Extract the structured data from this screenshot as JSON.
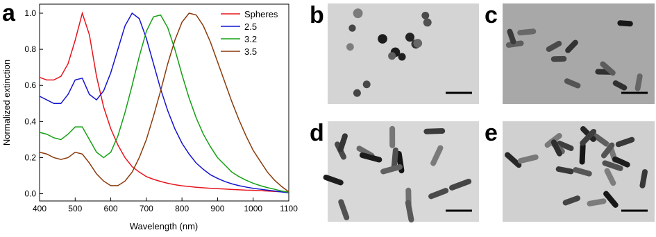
{
  "chart_data": {
    "type": "line",
    "label": "a",
    "xlabel": "Wavelength (nm)",
    "ylabel": "Normalized extinction",
    "x": [
      400,
      420,
      440,
      460,
      480,
      500,
      520,
      540,
      560,
      580,
      600,
      620,
      640,
      660,
      680,
      700,
      720,
      740,
      760,
      780,
      800,
      820,
      840,
      860,
      880,
      900,
      920,
      940,
      960,
      980,
      1000,
      1020,
      1040,
      1060,
      1080,
      1100
    ],
    "series": [
      {
        "name": "Spheres",
        "color": "#e8141c",
        "values": [
          0.645,
          0.63,
          0.63,
          0.65,
          0.72,
          0.85,
          1.0,
          0.88,
          0.65,
          0.48,
          0.36,
          0.27,
          0.2,
          0.15,
          0.12,
          0.095,
          0.08,
          0.068,
          0.058,
          0.05,
          0.044,
          0.04,
          0.036,
          0.033,
          0.03,
          0.028,
          0.026,
          0.024,
          0.022,
          0.02,
          0.019,
          0.017,
          0.015,
          0.013,
          0.011,
          0.01
        ]
      },
      {
        "name": "2.5",
        "color": "#1414d0",
        "values": [
          0.54,
          0.52,
          0.5,
          0.5,
          0.55,
          0.63,
          0.64,
          0.55,
          0.52,
          0.57,
          0.67,
          0.8,
          0.93,
          1.0,
          0.97,
          0.86,
          0.72,
          0.58,
          0.46,
          0.36,
          0.28,
          0.22,
          0.17,
          0.135,
          0.105,
          0.085,
          0.068,
          0.055,
          0.045,
          0.037,
          0.03,
          0.025,
          0.02,
          0.015,
          0.01,
          0.005
        ]
      },
      {
        "name": "3.2",
        "color": "#14a014",
        "values": [
          0.34,
          0.33,
          0.31,
          0.3,
          0.33,
          0.37,
          0.37,
          0.3,
          0.23,
          0.2,
          0.23,
          0.32,
          0.45,
          0.6,
          0.76,
          0.9,
          0.98,
          0.99,
          0.92,
          0.8,
          0.66,
          0.53,
          0.42,
          0.33,
          0.26,
          0.2,
          0.16,
          0.12,
          0.095,
          0.075,
          0.058,
          0.045,
          0.034,
          0.025,
          0.015,
          0.008
        ]
      },
      {
        "name": "3.5",
        "color": "#8b3a0a",
        "values": [
          0.23,
          0.22,
          0.2,
          0.19,
          0.2,
          0.23,
          0.22,
          0.17,
          0.11,
          0.07,
          0.045,
          0.045,
          0.07,
          0.12,
          0.2,
          0.3,
          0.43,
          0.57,
          0.72,
          0.85,
          0.95,
          1.0,
          0.99,
          0.93,
          0.84,
          0.73,
          0.62,
          0.51,
          0.41,
          0.32,
          0.24,
          0.18,
          0.12,
          0.075,
          0.04,
          0.01
        ]
      }
    ],
    "xlim": [
      400,
      1100
    ],
    "xticks": [
      400,
      500,
      600,
      700,
      800,
      900,
      1000,
      1100
    ],
    "ylim": [
      -0.04,
      1.05
    ],
    "yticks": [
      {
        "value": 0,
        "label": "0.0"
      },
      0.2,
      0.4,
      0.6,
      0.8,
      {
        "value": 1,
        "label": "1.0"
      }
    ],
    "legend": "upper right"
  },
  "images": [
    {
      "label": "b"
    },
    {
      "label": "c"
    },
    {
      "label": "d"
    },
    {
      "label": "e"
    }
  ]
}
